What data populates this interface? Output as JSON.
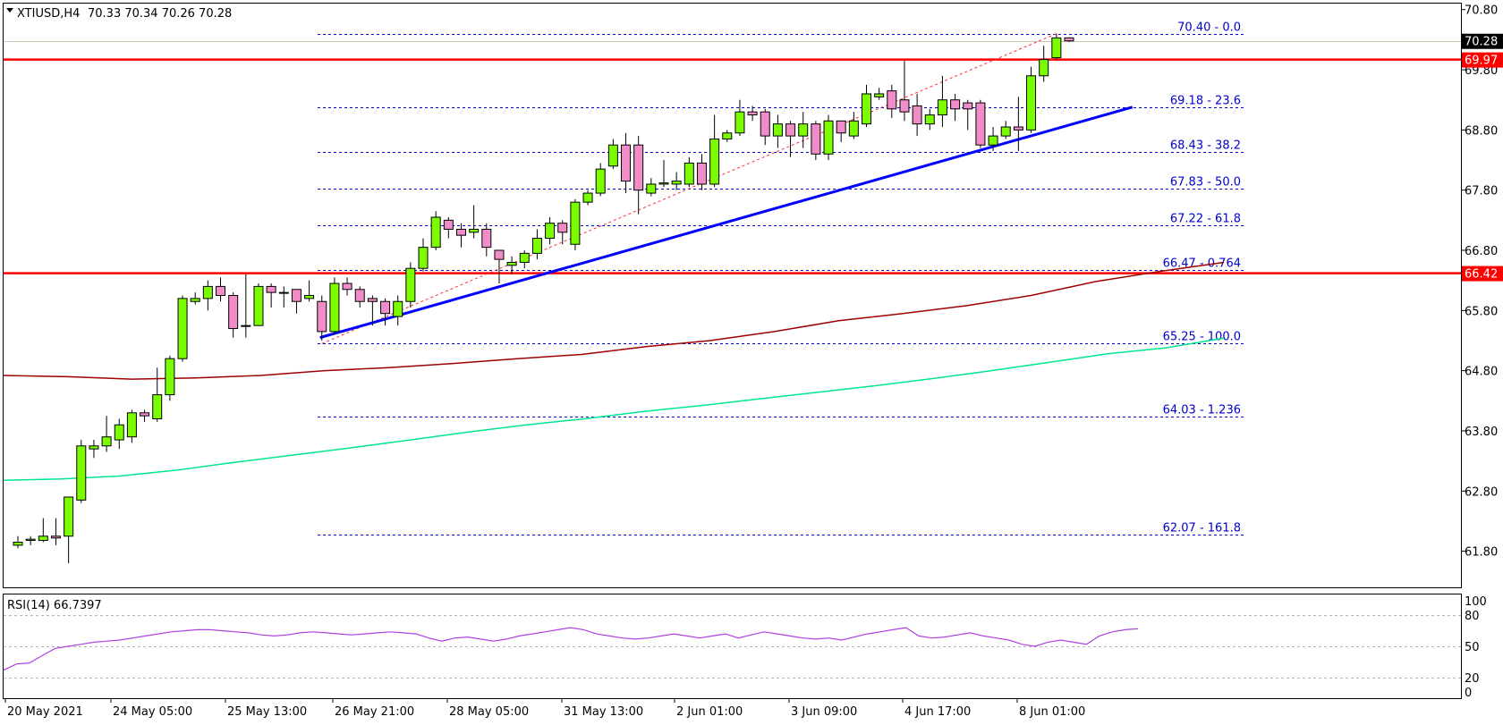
{
  "header": {
    "symbol_label": "XTIUSD,H4",
    "ohlc_label": "70.33 70.34 70.26 70.28"
  },
  "rsi": {
    "label": "RSI(14) 66.7397",
    "levels": [
      80,
      50,
      20
    ],
    "scale_labels": [
      "100",
      "80",
      "50",
      "20",
      "0"
    ]
  },
  "colors": {
    "bull_candle": "#7cfc00",
    "bear_candle": "#f08cc8",
    "resistance": "#ff0000",
    "trendline": "#0000ff",
    "sma_slow": "#a00000",
    "sma_fast": "#00e68c",
    "fib": "#0000cc",
    "rsi_line": "#b040e0"
  },
  "chart_data": {
    "type": "candlestick",
    "y_axis": {
      "ticks": [
        "70.80",
        "69.80",
        "68.80",
        "67.80",
        "66.80",
        "65.80",
        "64.80",
        "63.80",
        "62.80",
        "61.80"
      ],
      "range": [
        61.2,
        70.9
      ]
    },
    "x_axis": {
      "tick_labels": [
        "20 May 2021",
        "24 May 05:00",
        "25 May 13:00",
        "26 May 21:00",
        "28 May 05:00",
        "31 May 13:00",
        "2 Jun 01:00",
        "3 Jun 09:00",
        "4 Jun 17:00",
        "8 Jun 01:00"
      ]
    },
    "price_badges": [
      {
        "value": "70.28"
      },
      {
        "value": "69.97"
      },
      {
        "value": "66.42"
      }
    ],
    "horizontal_lines": [
      {
        "value": 69.97
      },
      {
        "value": 66.42
      }
    ],
    "fibonacci_levels": [
      {
        "value": 70.4,
        "label": "70.40 - 0.0"
      },
      {
        "value": 69.18,
        "label": "69.18 - 23.6"
      },
      {
        "value": 68.43,
        "label": "68.43 - 38.2"
      },
      {
        "value": 67.83,
        "label": "67.83 - 50.0"
      },
      {
        "value": 67.22,
        "label": "67.22 - 61.8"
      },
      {
        "value": 66.47,
        "label": "66.47 - 0.764"
      },
      {
        "value": 65.25,
        "label": "65.25 - 100.0"
      },
      {
        "value": 64.03,
        "label": "64.03 - 1.236"
      },
      {
        "value": 62.07,
        "label": "62.07 - 161.8"
      }
    ],
    "candles": [
      [
        61.9,
        61.95,
        61.85,
        62.05
      ],
      [
        61.98,
        62.0,
        61.9,
        62.05
      ],
      [
        61.98,
        62.05,
        61.95,
        62.35
      ],
      [
        62.05,
        62.02,
        61.9,
        62.35
      ],
      [
        62.05,
        62.7,
        61.6,
        62.7
      ],
      [
        62.65,
        63.55,
        62.6,
        63.65
      ],
      [
        63.5,
        63.55,
        63.35,
        63.65
      ],
      [
        63.55,
        63.7,
        63.45,
        64.05
      ],
      [
        63.65,
        63.9,
        63.5,
        64.0
      ],
      [
        63.7,
        64.1,
        63.6,
        64.15
      ],
      [
        64.1,
        64.05,
        63.95,
        64.15
      ],
      [
        64.0,
        64.4,
        63.95,
        64.85
      ],
      [
        64.4,
        65.0,
        64.3,
        65.05
      ],
      [
        65.0,
        66.0,
        64.95,
        66.05
      ],
      [
        65.95,
        66.0,
        65.9,
        66.1
      ],
      [
        66.0,
        66.2,
        65.8,
        66.3
      ],
      [
        66.2,
        66.05,
        65.95,
        66.35
      ],
      [
        66.05,
        65.5,
        65.35,
        66.1
      ],
      [
        65.55,
        65.55,
        65.35,
        66.4
      ],
      [
        65.55,
        66.2,
        65.55,
        66.25
      ],
      [
        66.2,
        66.1,
        65.85,
        66.25
      ],
      [
        66.1,
        66.1,
        65.85,
        66.2
      ],
      [
        66.15,
        65.95,
        65.75,
        66.15
      ],
      [
        66.0,
        66.05,
        65.95,
        66.3
      ],
      [
        65.95,
        65.45,
        65.3,
        66.05
      ],
      [
        65.45,
        66.25,
        65.4,
        66.35
      ],
      [
        66.25,
        66.15,
        66.05,
        66.35
      ],
      [
        66.15,
        65.95,
        65.85,
        66.2
      ],
      [
        66.0,
        65.95,
        65.55,
        66.05
      ],
      [
        65.95,
        65.75,
        65.55,
        66.0
      ],
      [
        65.7,
        65.95,
        65.55,
        66.05
      ],
      [
        65.95,
        66.5,
        65.85,
        66.6
      ],
      [
        66.5,
        66.85,
        66.45,
        67.0
      ],
      [
        66.85,
        67.35,
        66.8,
        67.45
      ],
      [
        67.3,
        67.15,
        67.0,
        67.35
      ],
      [
        67.15,
        67.05,
        66.85,
        67.25
      ],
      [
        67.1,
        67.15,
        67.0,
        67.55
      ],
      [
        67.15,
        66.85,
        66.7,
        67.25
      ],
      [
        66.8,
        66.65,
        66.25,
        66.8
      ],
      [
        66.55,
        66.6,
        66.4,
        66.7
      ],
      [
        66.6,
        66.75,
        66.5,
        66.8
      ],
      [
        66.75,
        67.0,
        66.65,
        67.15
      ],
      [
        67.0,
        67.25,
        66.9,
        67.35
      ],
      [
        67.25,
        67.1,
        66.9,
        67.3
      ],
      [
        66.9,
        67.6,
        66.8,
        67.65
      ],
      [
        67.6,
        67.75,
        67.55,
        67.8
      ],
      [
        67.75,
        68.15,
        67.7,
        68.25
      ],
      [
        68.2,
        68.55,
        68.15,
        68.65
      ],
      [
        68.55,
        67.95,
        67.75,
        68.75
      ],
      [
        68.55,
        67.8,
        67.4,
        68.7
      ],
      [
        67.75,
        67.9,
        67.7,
        68.0
      ],
      [
        67.9,
        67.92,
        67.85,
        68.3
      ],
      [
        67.9,
        67.95,
        67.8,
        68.1
      ],
      [
        67.9,
        68.25,
        67.85,
        68.35
      ],
      [
        68.25,
        67.9,
        67.8,
        68.4
      ],
      [
        67.9,
        68.65,
        67.85,
        69.05
      ],
      [
        68.65,
        68.75,
        68.6,
        68.8
      ],
      [
        68.75,
        69.1,
        68.7,
        69.3
      ],
      [
        69.1,
        69.05,
        68.95,
        69.2
      ],
      [
        69.1,
        68.7,
        68.55,
        69.15
      ],
      [
        68.7,
        68.9,
        68.5,
        69.05
      ],
      [
        68.9,
        68.7,
        68.35,
        68.95
      ],
      [
        68.7,
        68.9,
        68.5,
        69.1
      ],
      [
        68.9,
        68.4,
        68.3,
        68.95
      ],
      [
        68.4,
        68.95,
        68.3,
        69.05
      ],
      [
        68.95,
        68.75,
        68.6,
        68.95
      ],
      [
        68.7,
        68.95,
        68.65,
        69.1
      ],
      [
        68.9,
        69.4,
        68.85,
        69.55
      ],
      [
        69.35,
        69.4,
        69.3,
        69.5
      ],
      [
        69.45,
        69.15,
        69.0,
        69.55
      ],
      [
        69.3,
        69.1,
        68.95,
        69.95
      ],
      [
        69.2,
        68.9,
        68.7,
        69.4
      ],
      [
        68.9,
        69.05,
        68.8,
        69.15
      ],
      [
        69.05,
        69.3,
        68.85,
        69.7
      ],
      [
        69.3,
        69.15,
        68.95,
        69.4
      ],
      [
        69.25,
        69.15,
        68.8,
        69.3
      ],
      [
        69.25,
        68.55,
        68.5,
        69.3
      ],
      [
        68.55,
        68.7,
        68.45,
        68.85
      ],
      [
        68.7,
        68.85,
        68.65,
        68.95
      ],
      [
        68.85,
        68.8,
        68.45,
        69.35
      ],
      [
        68.8,
        69.7,
        68.75,
        69.85
      ],
      [
        69.7,
        69.97,
        69.6,
        70.2
      ],
      [
        70.0,
        70.33,
        69.97,
        70.4
      ],
      [
        70.33,
        70.28,
        70.26,
        70.34
      ]
    ],
    "trendline": {
      "from": [
        24,
        65.35
      ],
      "to": [
        88,
        69.18
      ]
    },
    "fib_swing": {
      "from": [
        24,
        65.25
      ],
      "to": [
        82,
        70.4
      ]
    },
    "sma_slow": [
      64.72,
      64.7,
      64.66,
      64.68,
      64.72,
      64.8,
      64.85,
      64.92,
      65.0,
      65.07,
      65.2,
      65.3,
      65.45,
      65.63,
      65.75,
      65.88,
      66.05,
      66.28,
      66.45,
      66.6
    ],
    "sma_fast": [
      62.98,
      63.0,
      63.05,
      63.15,
      63.28,
      63.4,
      63.52,
      63.65,
      63.78,
      63.9,
      64.0,
      64.12,
      64.22,
      64.33,
      64.44,
      64.55,
      64.67,
      64.8,
      64.94,
      65.08,
      65.18,
      65.34
    ],
    "rsi_values": [
      27,
      33,
      34,
      41,
      48,
      50,
      52,
      54,
      55,
      56,
      58,
      60,
      62,
      64,
      65,
      66,
      66,
      65,
      64,
      63,
      61,
      60,
      61,
      63,
      64,
      63,
      62,
      61,
      62,
      63,
      64,
      63,
      62,
      58,
      55,
      58,
      59,
      57,
      55,
      57,
      60,
      62,
      64,
      66,
      68,
      66,
      62,
      60,
      58,
      57,
      58,
      60,
      62,
      60,
      58,
      60,
      62,
      58,
      61,
      64,
      62,
      60,
      58,
      57,
      58,
      56,
      59,
      62,
      64,
      66,
      68,
      60,
      58,
      59,
      61,
      63,
      60,
      58,
      56,
      52,
      50,
      54,
      56,
      54,
      52,
      60,
      64,
      66,
      67
    ]
  }
}
